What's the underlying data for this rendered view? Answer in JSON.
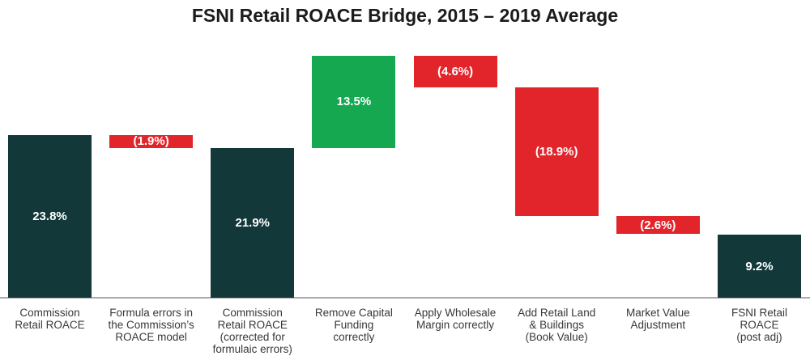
{
  "title": "FSNI Retail ROACE Bridge, 2015 – 2019 Average",
  "colors": {
    "dark": "#123839",
    "green": "#15a850",
    "red": "#e2242b",
    "axis": "#ababab",
    "value_text": "#ffffff",
    "category_text": "#383838",
    "title_text": "#1b1b1b",
    "background": "#ffffff"
  },
  "chart_data": {
    "type": "bar",
    "subtype": "waterfall",
    "title": "FSNI Retail ROACE Bridge, 2015 – 2019 Average",
    "xlabel": "",
    "ylabel": "",
    "ylim": [
      0,
      35.4
    ],
    "grid": false,
    "legend": "none",
    "bars": [
      {
        "label": "Commission\nRetail ROACE",
        "value_label": "23.8%",
        "value": 23.8,
        "start": 0,
        "end": 23.8,
        "color": "dark"
      },
      {
        "label": "Formula errors in\nthe Commission’s\nROACE model",
        "value_label": "(1.9%)",
        "value": -1.9,
        "start": 21.9,
        "end": 23.8,
        "color": "red"
      },
      {
        "label": "Commission\nRetail ROACE\n(corrected for\nformulaic errors)",
        "value_label": "21.9%",
        "value": 21.9,
        "start": 0,
        "end": 21.9,
        "color": "dark"
      },
      {
        "label": "Remove Capital\nFunding\ncorrectly",
        "value_label": "13.5%",
        "value": 13.5,
        "start": 21.9,
        "end": 35.4,
        "color": "green"
      },
      {
        "label": "Apply Wholesale\nMargin correctly",
        "value_label": "(4.6%)",
        "value": -4.6,
        "start": 30.8,
        "end": 35.4,
        "color": "red"
      },
      {
        "label": "Add Retail Land\n& Buildings\n(Book Value)",
        "value_label": "(18.9%)",
        "value": -18.9,
        "start": 11.9,
        "end": 30.8,
        "color": "red"
      },
      {
        "label": "Market Value\nAdjustment",
        "value_label": "(2.6%)",
        "value": -2.6,
        "start": 9.3,
        "end": 11.9,
        "color": "red"
      },
      {
        "label": "FSNI Retail\nROACE\n(post adj)",
        "value_label": "9.2%",
        "value": 9.2,
        "start": 0,
        "end": 9.2,
        "color": "dark"
      }
    ]
  }
}
